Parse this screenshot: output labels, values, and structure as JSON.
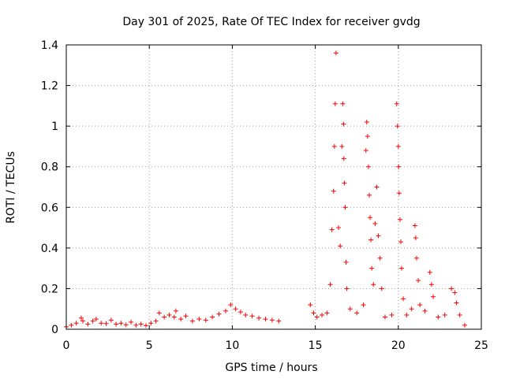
{
  "chart_data": {
    "type": "scatter",
    "title": "Day 301 of 2025, Rate Of TEC Index for receiver gvdg",
    "xlabel": "GPS time / hours",
    "ylabel": "ROTI / TECUs",
    "xlim": [
      0,
      25
    ],
    "ylim": [
      0,
      1.4
    ],
    "xticks": [
      "0",
      "5",
      "10",
      "15",
      "20",
      "25"
    ],
    "yticks": [
      "0",
      "0.2",
      "0.4",
      "0.6",
      "0.8",
      "1",
      "1.2",
      "1.4"
    ],
    "grid": true,
    "marker": "+",
    "series_color": "#ff0000",
    "series": [
      {
        "points": [
          [
            0.0,
            0.012
          ],
          [
            0.3,
            0.02
          ],
          [
            0.6,
            0.03
          ],
          [
            0.9,
            0.055
          ],
          [
            1.0,
            0.04
          ],
          [
            1.3,
            0.025
          ],
          [
            1.6,
            0.04
          ],
          [
            1.8,
            0.05
          ],
          [
            2.1,
            0.03
          ],
          [
            2.4,
            0.028
          ],
          [
            2.7,
            0.045
          ],
          [
            3.0,
            0.025
          ],
          [
            3.3,
            0.03
          ],
          [
            3.6,
            0.022
          ],
          [
            3.9,
            0.035
          ],
          [
            4.2,
            0.02
          ],
          [
            4.5,
            0.025
          ],
          [
            4.8,
            0.018
          ],
          [
            5.1,
            0.03
          ],
          [
            5.4,
            0.04
          ],
          [
            5.6,
            0.08
          ],
          [
            5.9,
            0.06
          ],
          [
            6.2,
            0.07
          ],
          [
            6.5,
            0.06
          ],
          [
            6.6,
            0.09
          ],
          [
            6.9,
            0.05
          ],
          [
            7.2,
            0.065
          ],
          [
            7.6,
            0.04
          ],
          [
            8.0,
            0.05
          ],
          [
            8.4,
            0.045
          ],
          [
            8.8,
            0.06
          ],
          [
            9.2,
            0.075
          ],
          [
            9.6,
            0.09
          ],
          [
            9.9,
            0.12
          ],
          [
            10.2,
            0.1
          ],
          [
            10.5,
            0.085
          ],
          [
            10.8,
            0.07
          ],
          [
            11.2,
            0.065
          ],
          [
            11.6,
            0.055
          ],
          [
            12.0,
            0.05
          ],
          [
            12.4,
            0.045
          ],
          [
            12.8,
            0.04
          ],
          [
            14.7,
            0.12
          ],
          [
            14.9,
            0.08
          ],
          [
            15.1,
            0.06
          ],
          [
            15.4,
            0.07
          ],
          [
            15.7,
            0.08
          ],
          [
            15.9,
            0.22
          ],
          [
            16.0,
            0.49
          ],
          [
            16.1,
            0.68
          ],
          [
            16.15,
            0.9
          ],
          [
            16.2,
            1.11
          ],
          [
            16.25,
            1.36
          ],
          [
            16.4,
            0.5
          ],
          [
            16.5,
            0.41
          ],
          [
            16.6,
            0.9
          ],
          [
            16.65,
            1.11
          ],
          [
            16.7,
            1.01
          ],
          [
            16.72,
            0.84
          ],
          [
            16.75,
            0.72
          ],
          [
            16.8,
            0.6
          ],
          [
            16.85,
            0.33
          ],
          [
            16.9,
            0.2
          ],
          [
            17.1,
            0.1
          ],
          [
            17.5,
            0.08
          ],
          [
            17.9,
            0.12
          ],
          [
            18.05,
            0.88
          ],
          [
            18.1,
            1.02
          ],
          [
            18.15,
            0.95
          ],
          [
            18.2,
            0.8
          ],
          [
            18.25,
            0.66
          ],
          [
            18.3,
            0.55
          ],
          [
            18.35,
            0.44
          ],
          [
            18.4,
            0.3
          ],
          [
            18.5,
            0.22
          ],
          [
            18.6,
            0.52
          ],
          [
            18.7,
            0.7
          ],
          [
            18.8,
            0.46
          ],
          [
            18.9,
            0.35
          ],
          [
            19.0,
            0.2
          ],
          [
            19.2,
            0.06
          ],
          [
            19.6,
            0.07
          ],
          [
            19.9,
            1.11
          ],
          [
            19.95,
            1.0
          ],
          [
            20.0,
            0.9
          ],
          [
            20.02,
            0.8
          ],
          [
            20.05,
            0.67
          ],
          [
            20.1,
            0.54
          ],
          [
            20.15,
            0.43
          ],
          [
            20.2,
            0.3
          ],
          [
            20.3,
            0.15
          ],
          [
            20.5,
            0.07
          ],
          [
            20.8,
            0.1
          ],
          [
            21.0,
            0.51
          ],
          [
            21.05,
            0.45
          ],
          [
            21.1,
            0.35
          ],
          [
            21.2,
            0.24
          ],
          [
            21.3,
            0.12
          ],
          [
            21.6,
            0.09
          ],
          [
            21.9,
            0.28
          ],
          [
            22.0,
            0.22
          ],
          [
            22.1,
            0.16
          ],
          [
            22.4,
            0.06
          ],
          [
            22.8,
            0.07
          ],
          [
            23.2,
            0.2
          ],
          [
            23.4,
            0.18
          ],
          [
            23.5,
            0.13
          ],
          [
            23.7,
            0.07
          ],
          [
            24.0,
            0.02
          ]
        ]
      }
    ]
  }
}
